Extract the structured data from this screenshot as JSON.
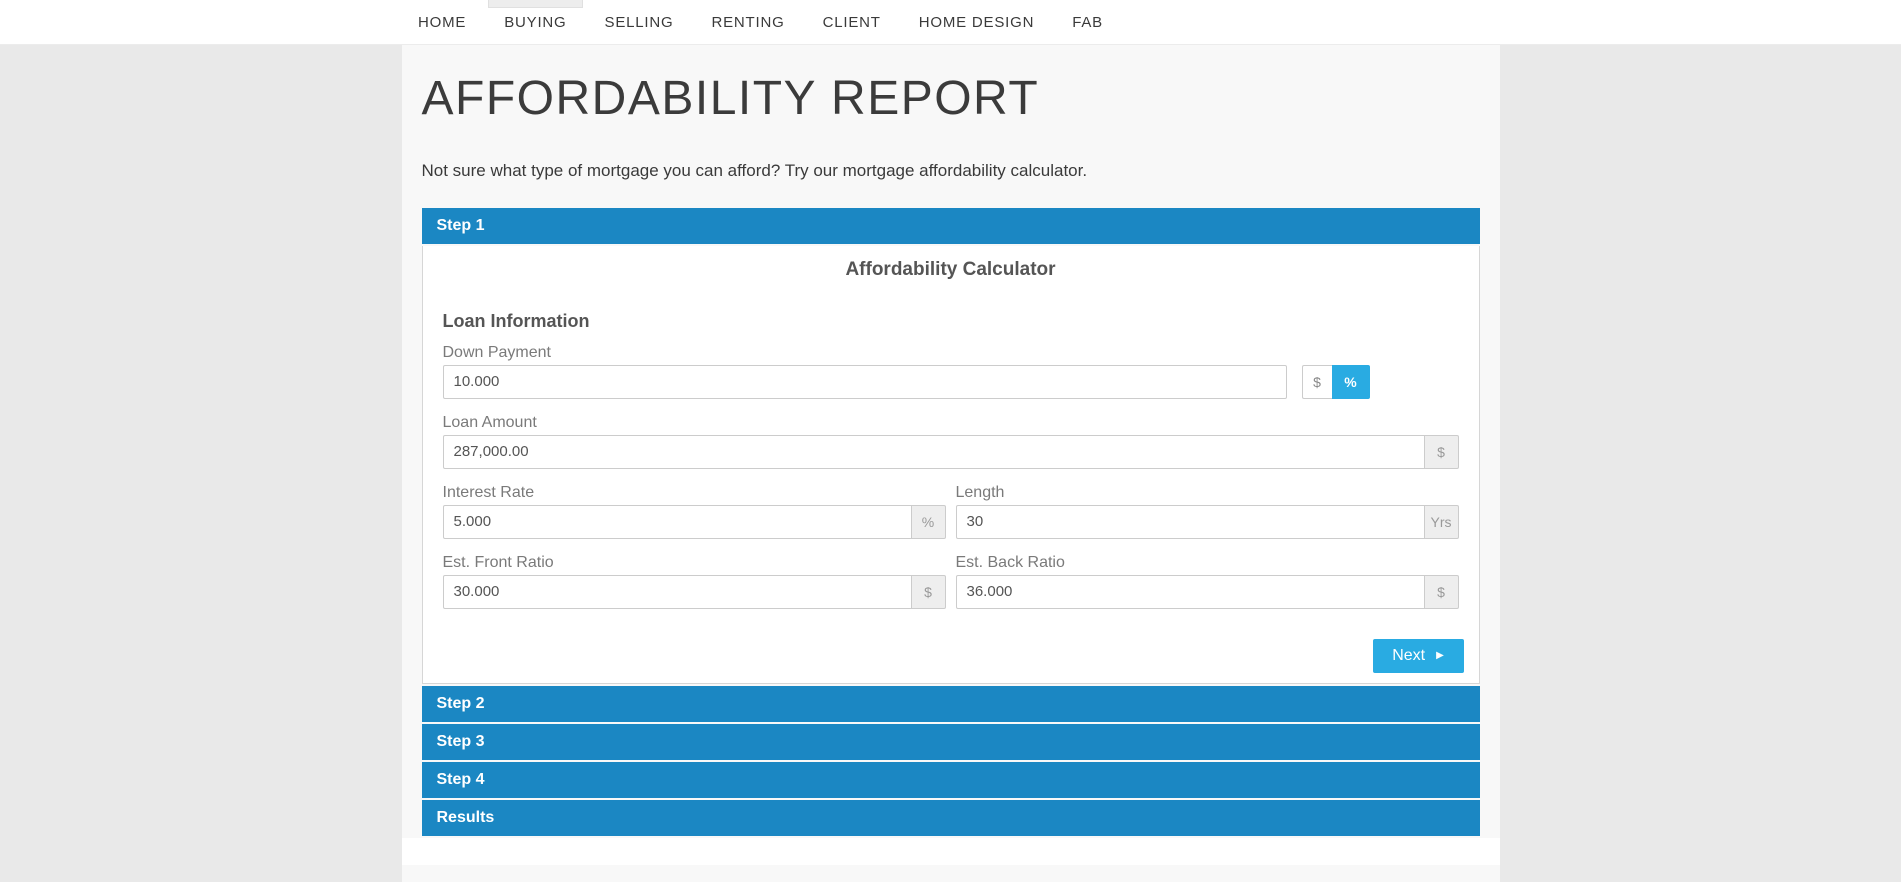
{
  "nav": {
    "items": [
      {
        "label": "HOME"
      },
      {
        "label": "BUYING"
      },
      {
        "label": "SELLING"
      },
      {
        "label": "RENTING"
      },
      {
        "label": "CLIENT"
      },
      {
        "label": "HOME DESIGN"
      },
      {
        "label": "FAB"
      }
    ],
    "active_item": "BUYING"
  },
  "page": {
    "title": "AFFORDABILITY REPORT",
    "intro": "Not sure what type of mortgage you can afford? Try our mortgage affordability calculator."
  },
  "accordion": {
    "step1": "Step 1",
    "step2": "Step 2",
    "step3": "Step 3",
    "step4": "Step 4",
    "results": "Results"
  },
  "calculator": {
    "heading": "Affordability Calculator",
    "section": "Loan Information",
    "fields": {
      "down_payment": {
        "label": "Down Payment",
        "value": "10.000"
      },
      "loan_amount": {
        "label": "Loan Amount",
        "value": "287,000.00",
        "unit": "$"
      },
      "interest_rate": {
        "label": "Interest Rate",
        "value": "5.000",
        "unit": "%"
      },
      "length": {
        "label": "Length",
        "value": "30",
        "unit": "Yrs"
      },
      "front_ratio": {
        "label": "Est. Front Ratio",
        "value": "30.000",
        "unit": "$"
      },
      "back_ratio": {
        "label": "Est. Back Ratio",
        "value": "36.000",
        "unit": "$"
      }
    },
    "down_payment_units": {
      "dollar": "$",
      "percent": "%",
      "selected": "%"
    },
    "next_label": "Next",
    "next_caret": "▶"
  },
  "colors": {
    "step_bar_blue": "#1b87c3",
    "accent_blue": "#29abe2",
    "page_bg": "#e9e9e9",
    "column_bg": "#f8f8f8"
  }
}
